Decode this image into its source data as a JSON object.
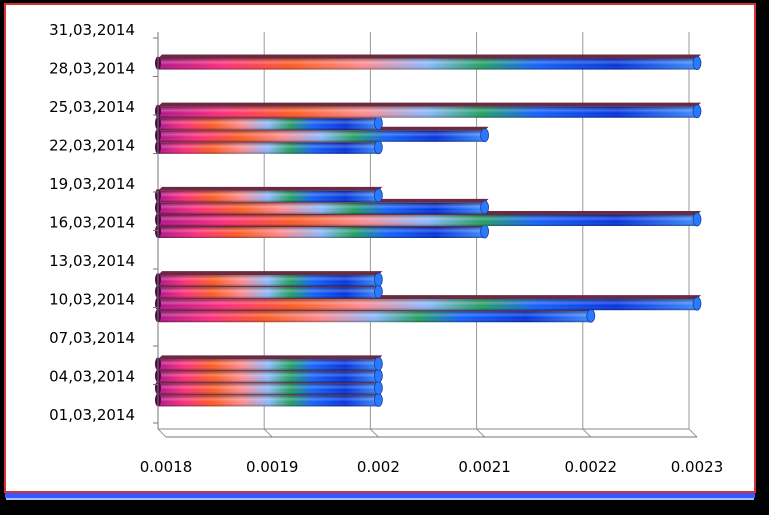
{
  "chart_data": {
    "type": "bar",
    "orientation": "horizontal",
    "xlim": [
      0.0018,
      0.0023
    ],
    "x_ticks": [
      "0.0018",
      "0.0019",
      "0.002",
      "0.0021",
      "0.0022",
      "0.0023"
    ],
    "y_tick_labels": [
      "01,03,2014",
      "04,03,2014",
      "07,03,2014",
      "10,03,2014",
      "13,03,2014",
      "16,03,2014",
      "19,03,2014",
      "22,03,2014",
      "25,03,2014",
      "28,03,2014",
      "31,03,2014"
    ],
    "grid": "vertical",
    "categories": [
      "03.03.2014",
      "04.03.2014",
      "05.03.2014",
      "06.03.2014",
      "10.03.2014",
      "11.03.2014",
      "12.03.2014",
      "13.03.2014",
      "17.03.2014",
      "18.03.2014",
      "19.03.2014",
      "20.03.2014",
      "24.03.2014",
      "25.03.2014",
      "26.03.2014",
      "27.03.2014",
      "31.03.2014"
    ],
    "day_of_month": [
      3,
      4,
      5,
      6,
      10,
      11,
      12,
      13,
      17,
      18,
      19,
      20,
      24,
      25,
      26,
      27,
      31
    ],
    "values": [
      0.002,
      0.002,
      0.002,
      0.002,
      0.0022,
      0.0023,
      0.002,
      0.002,
      0.0021,
      0.0023,
      0.0021,
      0.002,
      0.002,
      0.0021,
      0.002,
      0.0023,
      0.0023
    ]
  }
}
